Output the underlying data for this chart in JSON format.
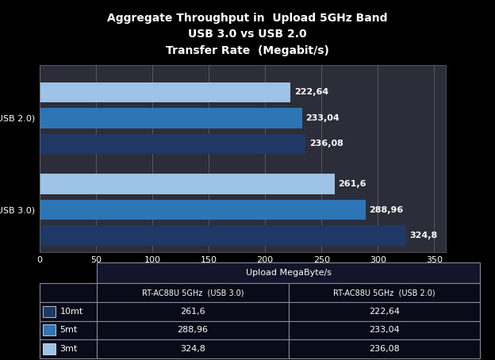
{
  "title_line1": "Aggregate Throughput in  Upload 5GHz Band",
  "title_line2": "USB 3.0 vs USB 2.0",
  "title_line3": "Transfer Rate  (Megabit/s)",
  "ylabel": "Upload MegaByte/s",
  "xlim": [
    0,
    350
  ],
  "xticks": [
    0,
    50,
    100,
    150,
    200,
    250,
    300,
    350
  ],
  "usb20_values": [
    222.64,
    233.04,
    236.08
  ],
  "usb30_values": [
    261.6,
    288.96,
    324.8
  ],
  "usb20_labels": [
    "222,64",
    "233,04",
    "236,08"
  ],
  "usb30_labels": [
    "261,6",
    "288,96",
    "324,8"
  ],
  "usb20_colors": [
    "#9DC3E6",
    "#2E75B6",
    "#1F3864"
  ],
  "usb30_colors": [
    "#9DC3E6",
    "#2E75B6",
    "#1F3864"
  ],
  "group_label_usb20": "RT-AC88U 5GHz  (USB 2.0)",
  "group_label_usb30": "RT-AC88U 5GHz  (USB 3.0)",
  "background_color": "#000000",
  "chart_bg_color": "#2d2d3a",
  "left_panel_color": "#000000",
  "text_color": "#ffffff",
  "grid_color": "#666677",
  "table_header": "Upload MegaByte/s",
  "table_col1": "RT-AC88U 5GHz  (USB 3.0)",
  "table_col2": "RT-AC88U 5GHz  (USB 2.0)",
  "table_rows": [
    {
      "label": "10mt",
      "usb30": "261,6",
      "usb20": "222,64"
    },
    {
      "label": "5mt",
      "usb30": "288,96",
      "usb20": "233,04"
    },
    {
      "label": "3mt",
      "usb30": "324,8",
      "usb20": "236,08"
    }
  ],
  "icon_colors": [
    "#1F3864",
    "#2E75B6",
    "#9DC3E6"
  ]
}
